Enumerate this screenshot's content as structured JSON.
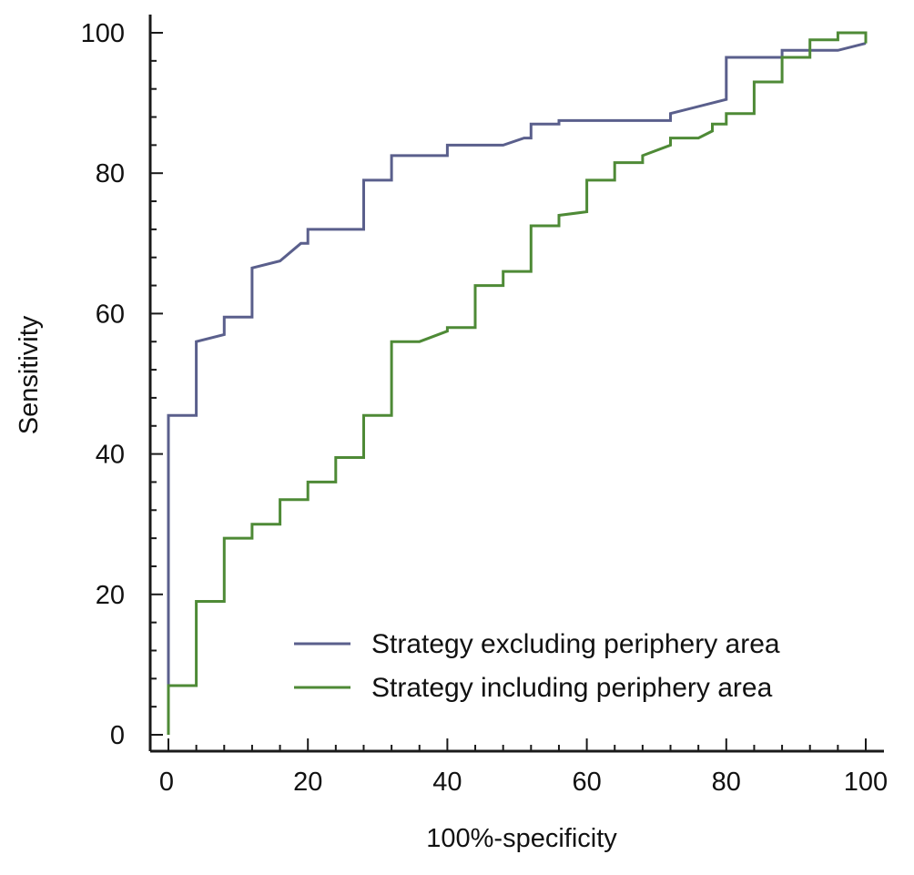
{
  "chart_data": {
    "type": "line",
    "title": "",
    "xlabel": "100%-specificity",
    "ylabel": "Sensitivity",
    "xlim": [
      0,
      100
    ],
    "ylim": [
      0,
      100
    ],
    "x_ticks": [
      "0",
      "20",
      "40",
      "60",
      "80",
      "100"
    ],
    "y_ticks": [
      "0",
      "20",
      "40",
      "60",
      "80",
      "100"
    ],
    "grid": false,
    "legend_position": "bottom-right",
    "series": [
      {
        "name": "Strategy excluding periphery area",
        "color": "#5a5f8c",
        "points": [
          [
            0,
            0
          ],
          [
            0,
            45.5
          ],
          [
            4,
            45.5
          ],
          [
            4,
            56
          ],
          [
            8,
            57
          ],
          [
            8,
            59.5
          ],
          [
            12,
            59.5
          ],
          [
            12,
            66.5
          ],
          [
            16,
            67.5
          ],
          [
            19,
            70
          ],
          [
            20,
            70
          ],
          [
            20,
            72
          ],
          [
            28,
            72
          ],
          [
            28,
            79
          ],
          [
            32,
            79
          ],
          [
            32,
            82.5
          ],
          [
            40,
            82.5
          ],
          [
            40,
            84
          ],
          [
            48,
            84
          ],
          [
            51,
            85
          ],
          [
            52,
            85
          ],
          [
            52,
            87
          ],
          [
            56,
            87
          ],
          [
            56,
            87.5
          ],
          [
            72,
            87.5
          ],
          [
            72,
            88.5
          ],
          [
            80,
            90.5
          ],
          [
            80,
            96.5
          ],
          [
            88,
            96.5
          ],
          [
            88,
            97.5
          ],
          [
            96,
            97.5
          ],
          [
            100,
            98.5
          ]
        ]
      },
      {
        "name": "Strategy including periphery area",
        "color": "#4e8a36",
        "points": [
          [
            0,
            0
          ],
          [
            0,
            7
          ],
          [
            4,
            7
          ],
          [
            4,
            19
          ],
          [
            8,
            19
          ],
          [
            8,
            28
          ],
          [
            12,
            28
          ],
          [
            12,
            30
          ],
          [
            16,
            30
          ],
          [
            16,
            33.5
          ],
          [
            20,
            33.5
          ],
          [
            20,
            36
          ],
          [
            24,
            36
          ],
          [
            24,
            39.5
          ],
          [
            28,
            39.5
          ],
          [
            28,
            45.5
          ],
          [
            32,
            45.5
          ],
          [
            32,
            56
          ],
          [
            36,
            56
          ],
          [
            40,
            57.5
          ],
          [
            40,
            58
          ],
          [
            44,
            58
          ],
          [
            44,
            64
          ],
          [
            48,
            64
          ],
          [
            48,
            66
          ],
          [
            52,
            66
          ],
          [
            52,
            72.5
          ],
          [
            56,
            72.5
          ],
          [
            56,
            74
          ],
          [
            60,
            74.5
          ],
          [
            60,
            79
          ],
          [
            64,
            79
          ],
          [
            64,
            81.5
          ],
          [
            68,
            81.5
          ],
          [
            68,
            82.5
          ],
          [
            72,
            84
          ],
          [
            72,
            85
          ],
          [
            76,
            85
          ],
          [
            78,
            86
          ],
          [
            78,
            87
          ],
          [
            80,
            87
          ],
          [
            80,
            88.5
          ],
          [
            84,
            88.5
          ],
          [
            84,
            93
          ],
          [
            88,
            93
          ],
          [
            88,
            96.5
          ],
          [
            92,
            96.5
          ],
          [
            92,
            99
          ],
          [
            96,
            99
          ],
          [
            96,
            100
          ],
          [
            100,
            100
          ],
          [
            100,
            98.5
          ]
        ]
      }
    ]
  }
}
